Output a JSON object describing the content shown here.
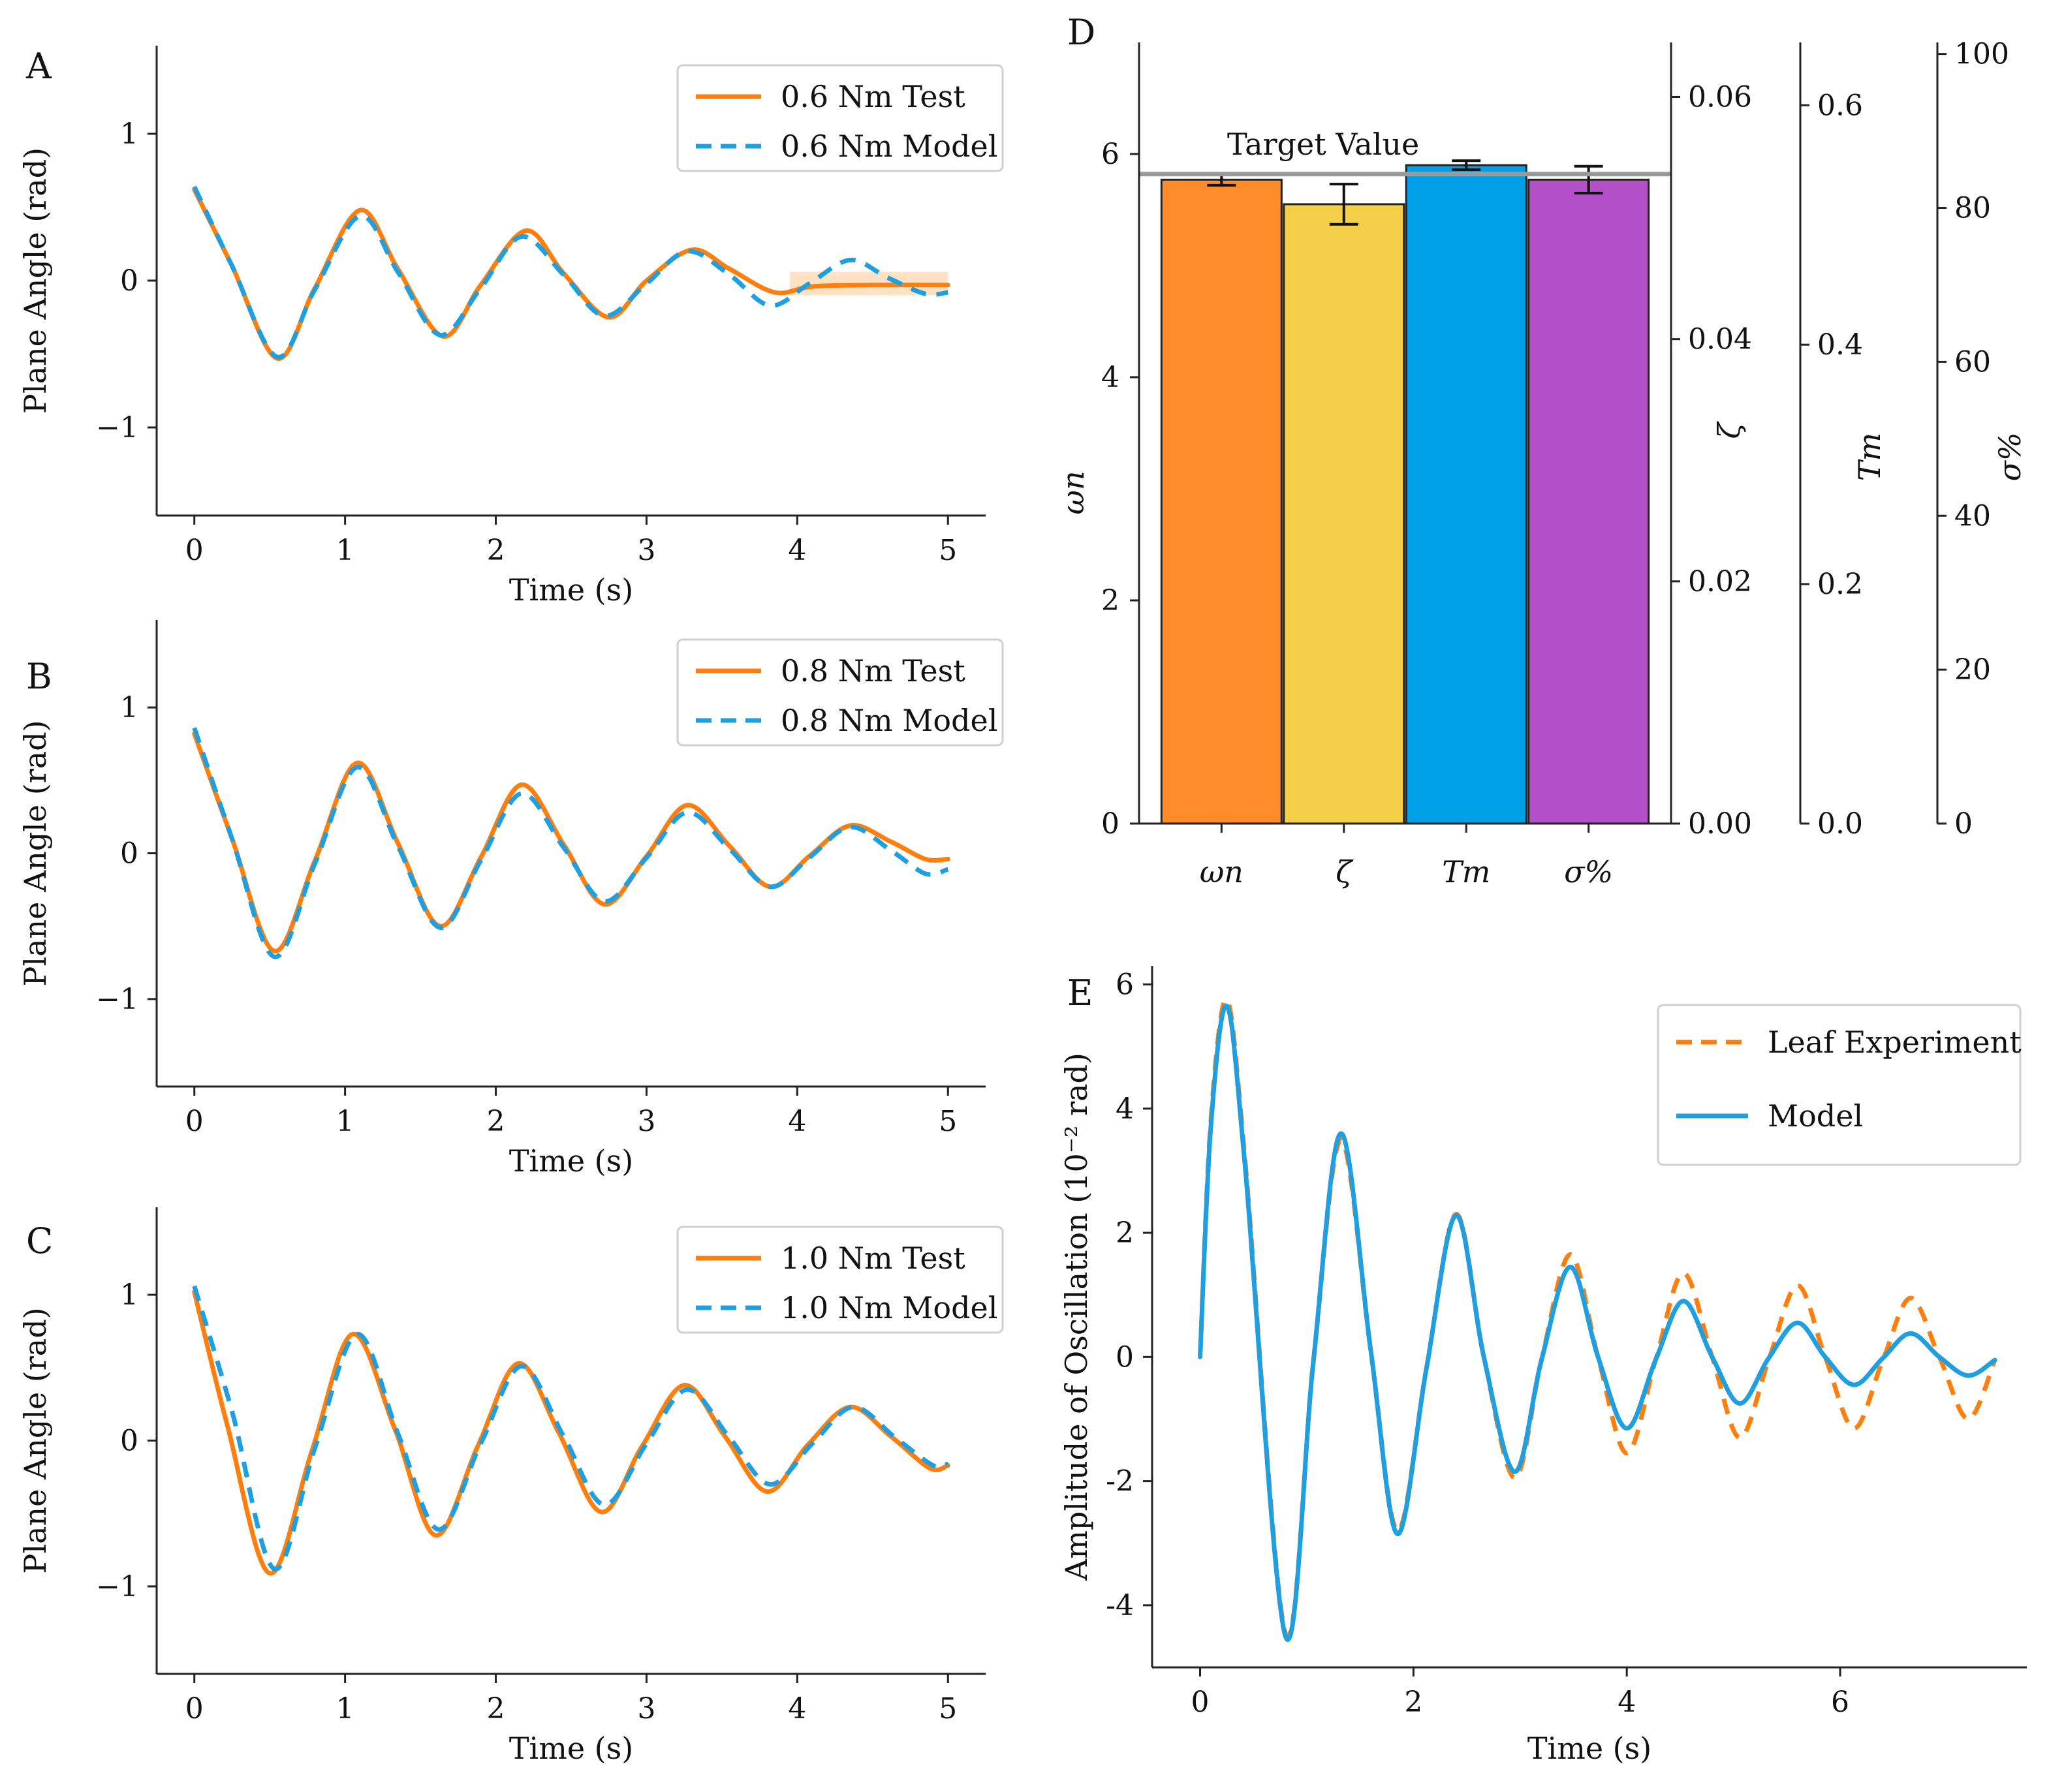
{
  "colors": {
    "orange": "#ff7f0e",
    "blue": "#1f9fe0",
    "bar_omega": "#ff8c2a",
    "bar_zeta": "#f4cf48",
    "bar_tm": "#009fe8",
    "bar_sigma": "#b34fc8",
    "axis_zeta": "#f0c232",
    "axis_tm": "#00a8e8",
    "axis_sigma": "#c03fd0",
    "target": "#9a9a9a"
  },
  "chart_data": [
    {
      "panel": "A",
      "type": "line",
      "xlabel": "Time (s)",
      "ylabel": "Plane Angle (rad)",
      "xlim": [
        -0.25,
        5.25
      ],
      "ylim": [
        -1.6,
        1.6
      ],
      "xticks": [
        0,
        1,
        2,
        3,
        4,
        5
      ],
      "yticks": [
        -1,
        0,
        1
      ],
      "legend": "top-right",
      "series": [
        {
          "name": "0.6 Nm Test",
          "style": "solid",
          "color": "orange",
          "x": [
            0,
            0.25,
            0.55,
            0.8,
            1.1,
            1.35,
            1.65,
            1.9,
            2.2,
            2.45,
            2.75,
            3.0,
            3.3,
            3.55,
            3.85,
            4.1,
            4.5,
            5.0
          ],
          "y": [
            0.62,
            0.1,
            -0.53,
            -0.05,
            0.48,
            0.08,
            -0.38,
            -0.03,
            0.34,
            0.05,
            -0.25,
            0.0,
            0.21,
            0.08,
            -0.08,
            -0.04,
            -0.03,
            -0.03
          ]
        },
        {
          "name": "0.6 Nm Model",
          "style": "dashed",
          "color": "blue",
          "x": [
            0,
            0.25,
            0.55,
            0.8,
            1.1,
            1.35,
            1.63,
            1.9,
            2.17,
            2.45,
            2.72,
            3.0,
            3.27,
            3.55,
            3.82,
            4.08,
            4.35,
            4.6,
            4.85,
            5.0
          ],
          "y": [
            0.64,
            0.1,
            -0.52,
            -0.06,
            0.44,
            0.06,
            -0.37,
            -0.05,
            0.3,
            0.04,
            -0.24,
            -0.02,
            0.2,
            0.04,
            -0.17,
            -0.02,
            0.14,
            0.02,
            -0.09,
            -0.08
          ]
        }
      ]
    },
    {
      "panel": "B",
      "type": "line",
      "xlabel": "Time (s)",
      "ylabel": "Plane Angle (rad)",
      "xlim": [
        -0.25,
        5.25
      ],
      "ylim": [
        -1.6,
        1.6
      ],
      "xticks": [
        0,
        1,
        2,
        3,
        4,
        5
      ],
      "yticks": [
        -1,
        0,
        1
      ],
      "legend": "top-right",
      "series": [
        {
          "name": "0.8 Nm Test",
          "style": "solid",
          "color": "orange",
          "x": [
            0,
            0.25,
            0.53,
            0.8,
            1.08,
            1.35,
            1.63,
            1.9,
            2.17,
            2.45,
            2.72,
            3.0,
            3.27,
            3.55,
            3.82,
            4.08,
            4.35,
            4.62,
            4.85,
            5.0
          ],
          "y": [
            0.82,
            0.1,
            -0.67,
            -0.05,
            0.62,
            0.07,
            -0.5,
            -0.03,
            0.47,
            0.06,
            -0.35,
            -0.02,
            0.33,
            0.05,
            -0.23,
            -0.02,
            0.19,
            0.08,
            -0.04,
            -0.04
          ]
        },
        {
          "name": "0.8 Nm Model",
          "style": "dashed",
          "color": "blue",
          "x": [
            0,
            0.25,
            0.53,
            0.8,
            1.08,
            1.35,
            1.63,
            1.9,
            2.17,
            2.45,
            2.72,
            3.0,
            3.27,
            3.55,
            3.82,
            4.08,
            4.35,
            4.62,
            4.85,
            5.0
          ],
          "y": [
            0.86,
            0.1,
            -0.71,
            -0.07,
            0.59,
            0.05,
            -0.51,
            -0.05,
            0.41,
            0.04,
            -0.33,
            -0.03,
            0.28,
            0.03,
            -0.23,
            -0.03,
            0.18,
            0.02,
            -0.14,
            -0.11
          ]
        }
      ]
    },
    {
      "panel": "C",
      "type": "line",
      "xlabel": "Time (s)",
      "ylabel": "Plane Angle (rad)",
      "xlim": [
        -0.25,
        5.25
      ],
      "ylim": [
        -1.6,
        1.6
      ],
      "xticks": [
        0,
        1,
        2,
        3,
        4,
        5
      ],
      "yticks": [
        -1,
        0,
        1
      ],
      "legend": "top-right",
      "series": [
        {
          "name": "1.0 Nm Test",
          "style": "solid",
          "color": "orange",
          "x": [
            0,
            0.22,
            0.5,
            0.78,
            1.05,
            1.33,
            1.6,
            1.88,
            2.15,
            2.42,
            2.7,
            2.97,
            3.25,
            3.52,
            3.8,
            4.07,
            4.35,
            4.62,
            4.88,
            5.0
          ],
          "y": [
            1.02,
            0.1,
            -0.91,
            -0.07,
            0.73,
            0.08,
            -0.65,
            -0.04,
            0.53,
            0.05,
            -0.49,
            -0.04,
            0.38,
            0.03,
            -0.35,
            -0.03,
            0.23,
            0.03,
            -0.19,
            -0.17
          ]
        },
        {
          "name": "1.0 Nm Model",
          "style": "dashed",
          "color": "blue",
          "x": [
            0,
            0.25,
            0.53,
            0.8,
            1.08,
            1.35,
            1.62,
            1.9,
            2.17,
            2.45,
            2.72,
            3.0,
            3.27,
            3.55,
            3.82,
            4.1,
            4.37,
            4.65,
            4.9,
            5.0
          ],
          "y": [
            1.06,
            0.2,
            -0.88,
            -0.05,
            0.73,
            0.05,
            -0.61,
            -0.02,
            0.51,
            0.03,
            -0.44,
            -0.02,
            0.35,
            0.02,
            -0.3,
            -0.02,
            0.23,
            0.02,
            -0.17,
            -0.16
          ]
        }
      ]
    },
    {
      "panel": "D",
      "type": "bar",
      "categories": [
        "ωn",
        "ζ",
        "Tm",
        "σ%"
      ],
      "values": [
        5.77,
        5.55,
        5.9,
        5.77
      ],
      "errors": [
        0.05,
        0.18,
        0.04,
        0.12
      ],
      "annotation": "Target Value",
      "target": 5.82,
      "ylim": [
        0,
        7
      ],
      "axes": [
        {
          "label": "ωn",
          "ticks": [
            "0",
            "2",
            "4",
            "6"
          ],
          "values": [
            0,
            2,
            4,
            6
          ],
          "ylim": [
            0,
            7
          ],
          "color": "orange"
        },
        {
          "label": "ζ",
          "ticks": [
            "0.00",
            "0.02",
            "0.04",
            "0.06"
          ],
          "values": [
            0,
            0.02,
            0.04,
            0.06
          ],
          "ylim": [
            0,
            0.0645
          ],
          "color": "axis_zeta"
        },
        {
          "label": "Tm",
          "ticks": [
            "0.0",
            "0.2",
            "0.4",
            "0.6"
          ],
          "values": [
            0,
            0.2,
            0.4,
            0.6
          ],
          "ylim": [
            0,
            0.6525
          ],
          "color": "axis_tm"
        },
        {
          "label": "σ%",
          "ticks": [
            "0",
            "20",
            "40",
            "60",
            "80",
            "100"
          ],
          "values": [
            0,
            20,
            40,
            60,
            80,
            100
          ],
          "ylim": [
            0,
            101.5
          ],
          "color": "axis_sigma"
        }
      ]
    },
    {
      "panel": "E",
      "type": "line",
      "xlabel": "Time (s)",
      "ylabel": "Amplitude of Oscillation (10⁻² rad)",
      "xlim": [
        -0.45,
        7.75
      ],
      "ylim": [
        -5.0,
        6.3
      ],
      "xticks": [
        0,
        2,
        4,
        6
      ],
      "yticks": [
        -4,
        -2,
        0,
        2,
        4,
        6
      ],
      "ytick_labels": [
        "-4",
        "-2",
        "0",
        "2",
        "4",
        "6"
      ],
      "legend": "top-right",
      "series": [
        {
          "name": "Leaf  Experiment",
          "style": "dashed",
          "color": "orange",
          "x": [
            0,
            0.1,
            0.25,
            0.42,
            0.8,
            1.06,
            1.32,
            1.6,
            1.85,
            2.12,
            2.4,
            2.66,
            2.95,
            3.2,
            3.47,
            3.73,
            4.0,
            4.27,
            4.53,
            4.8,
            5.06,
            5.33,
            5.6,
            5.86,
            6.13,
            6.4,
            6.66,
            6.93,
            7.2,
            7.45
          ],
          "y": [
            0,
            3.8,
            5.75,
            3.2,
            -4.45,
            -0.1,
            3.5,
            0.1,
            -2.8,
            -0.2,
            2.3,
            0.0,
            -1.95,
            -0.05,
            1.65,
            0.0,
            -1.55,
            -0.05,
            1.35,
            0.0,
            -1.3,
            -0.05,
            1.15,
            0.0,
            -1.15,
            -0.05,
            0.95,
            0.0,
            -1.0,
            -0.05
          ]
        },
        {
          "name": "Model",
          "style": "solid",
          "color": "blue",
          "x": [
            0,
            0.1,
            0.25,
            0.42,
            0.8,
            1.06,
            1.32,
            1.6,
            1.85,
            2.12,
            2.4,
            2.66,
            2.95,
            3.2,
            3.47,
            3.73,
            4.0,
            4.27,
            4.53,
            4.8,
            5.06,
            5.33,
            5.6,
            5.86,
            6.13,
            6.4,
            6.66,
            6.93,
            7.2,
            7.45
          ],
          "y": [
            0,
            3.7,
            5.65,
            3.1,
            -4.5,
            -0.1,
            3.6,
            0.1,
            -2.85,
            -0.2,
            2.28,
            0.0,
            -1.85,
            -0.05,
            1.45,
            0.0,
            -1.15,
            -0.05,
            0.9,
            0.0,
            -0.75,
            -0.02,
            0.55,
            0.0,
            -0.45,
            -0.02,
            0.38,
            0.0,
            -0.3,
            -0.05
          ]
        }
      ]
    }
  ]
}
